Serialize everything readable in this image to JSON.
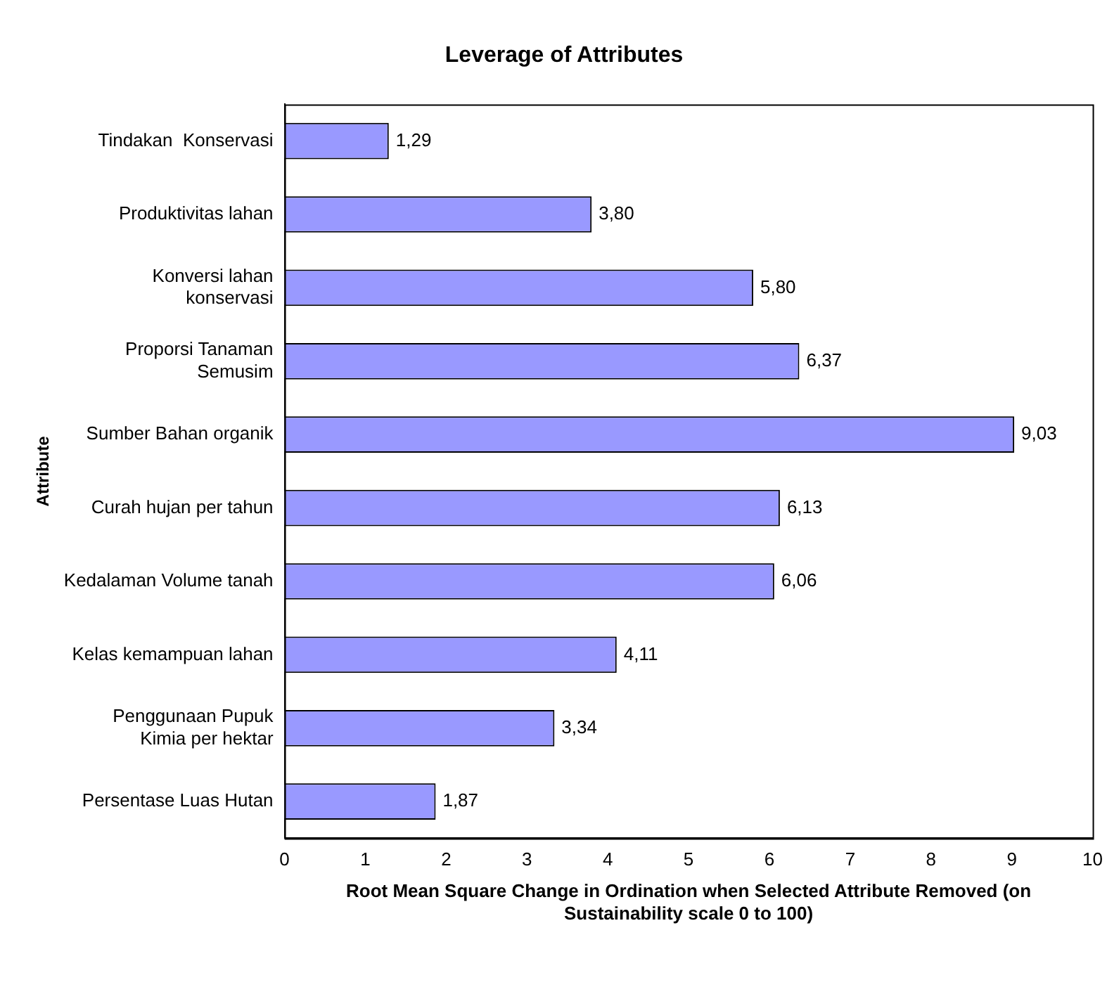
{
  "chart_data": {
    "type": "bar",
    "orientation": "horizontal",
    "title": "Leverage of Attributes",
    "xlabel": "Root Mean Square Change in Ordination when Selected Attribute Removed (on Sustainability scale 0 to 100)",
    "ylabel": "Attribute",
    "categories": [
      "Tindakan  Konservasi",
      "Produktivitas lahan",
      "Konversi lahan konservasi",
      "Proporsi Tanaman Semusim",
      "Sumber Bahan organik",
      "Curah hujan per tahun",
      "Kedalaman Volume tanah",
      "Kelas kemampuan lahan",
      "Penggunaan Pupuk Kimia per hektar",
      "Persentase Luas Hutan"
    ],
    "values": [
      1.29,
      3.8,
      5.8,
      6.37,
      9.03,
      6.13,
      6.06,
      4.11,
      3.34,
      1.87
    ],
    "value_labels": [
      "1,29",
      "3,80",
      "5,80",
      "6,37",
      "9,03",
      "6,13",
      "6,06",
      "4,11",
      "3,34",
      "1,87"
    ],
    "color": "#9999ff",
    "xlim": [
      0,
      10
    ],
    "xticks": [
      0,
      1,
      2,
      3,
      4,
      5,
      6,
      7,
      8,
      9,
      10
    ],
    "grid": false,
    "legend": false
  }
}
